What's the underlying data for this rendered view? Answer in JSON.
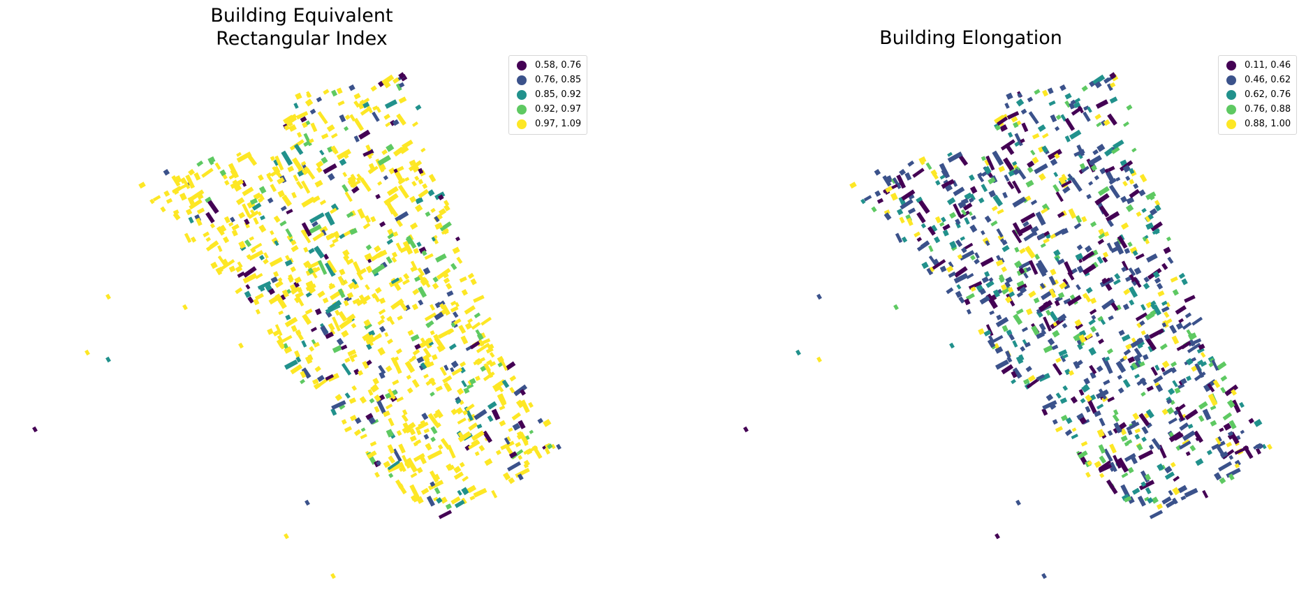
{
  "maps": [
    {
      "title": "Building Equivalent\nRectangular Index",
      "legend": [
        {
          "label": "0.58, 0.76",
          "color": "#440154"
        },
        {
          "label": "0.76, 0.85",
          "color": "#3b528b"
        },
        {
          "label": "0.85, 0.92",
          "color": "#21918c"
        },
        {
          "label": "0.92, 0.97",
          "color": "#5ec962"
        },
        {
          "label": "0.97, 1.09",
          "color": "#fde725"
        }
      ]
    },
    {
      "title": "Building Elongation",
      "legend": [
        {
          "label": "0.11, 0.46",
          "color": "#440154"
        },
        {
          "label": "0.46, 0.62",
          "color": "#3b528b"
        },
        {
          "label": "0.62, 0.76",
          "color": "#21918c"
        },
        {
          "label": "0.76, 0.88",
          "color": "#5ec962"
        },
        {
          "label": "0.88, 1.00",
          "color": "#fde725"
        }
      ]
    }
  ]
}
